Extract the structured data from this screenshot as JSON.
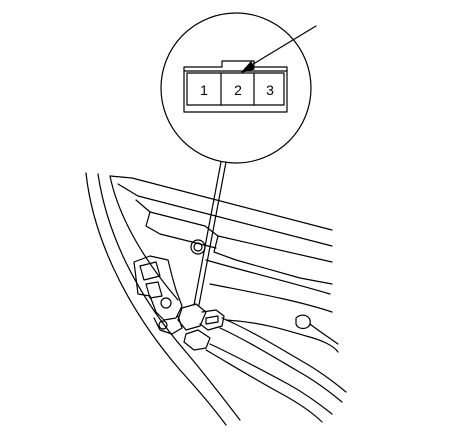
{
  "connector": {
    "pins": [
      {
        "label": "1"
      },
      {
        "label": "2"
      },
      {
        "label": "3"
      }
    ]
  },
  "colors": {
    "line": "#000000",
    "background": "#ffffff"
  }
}
